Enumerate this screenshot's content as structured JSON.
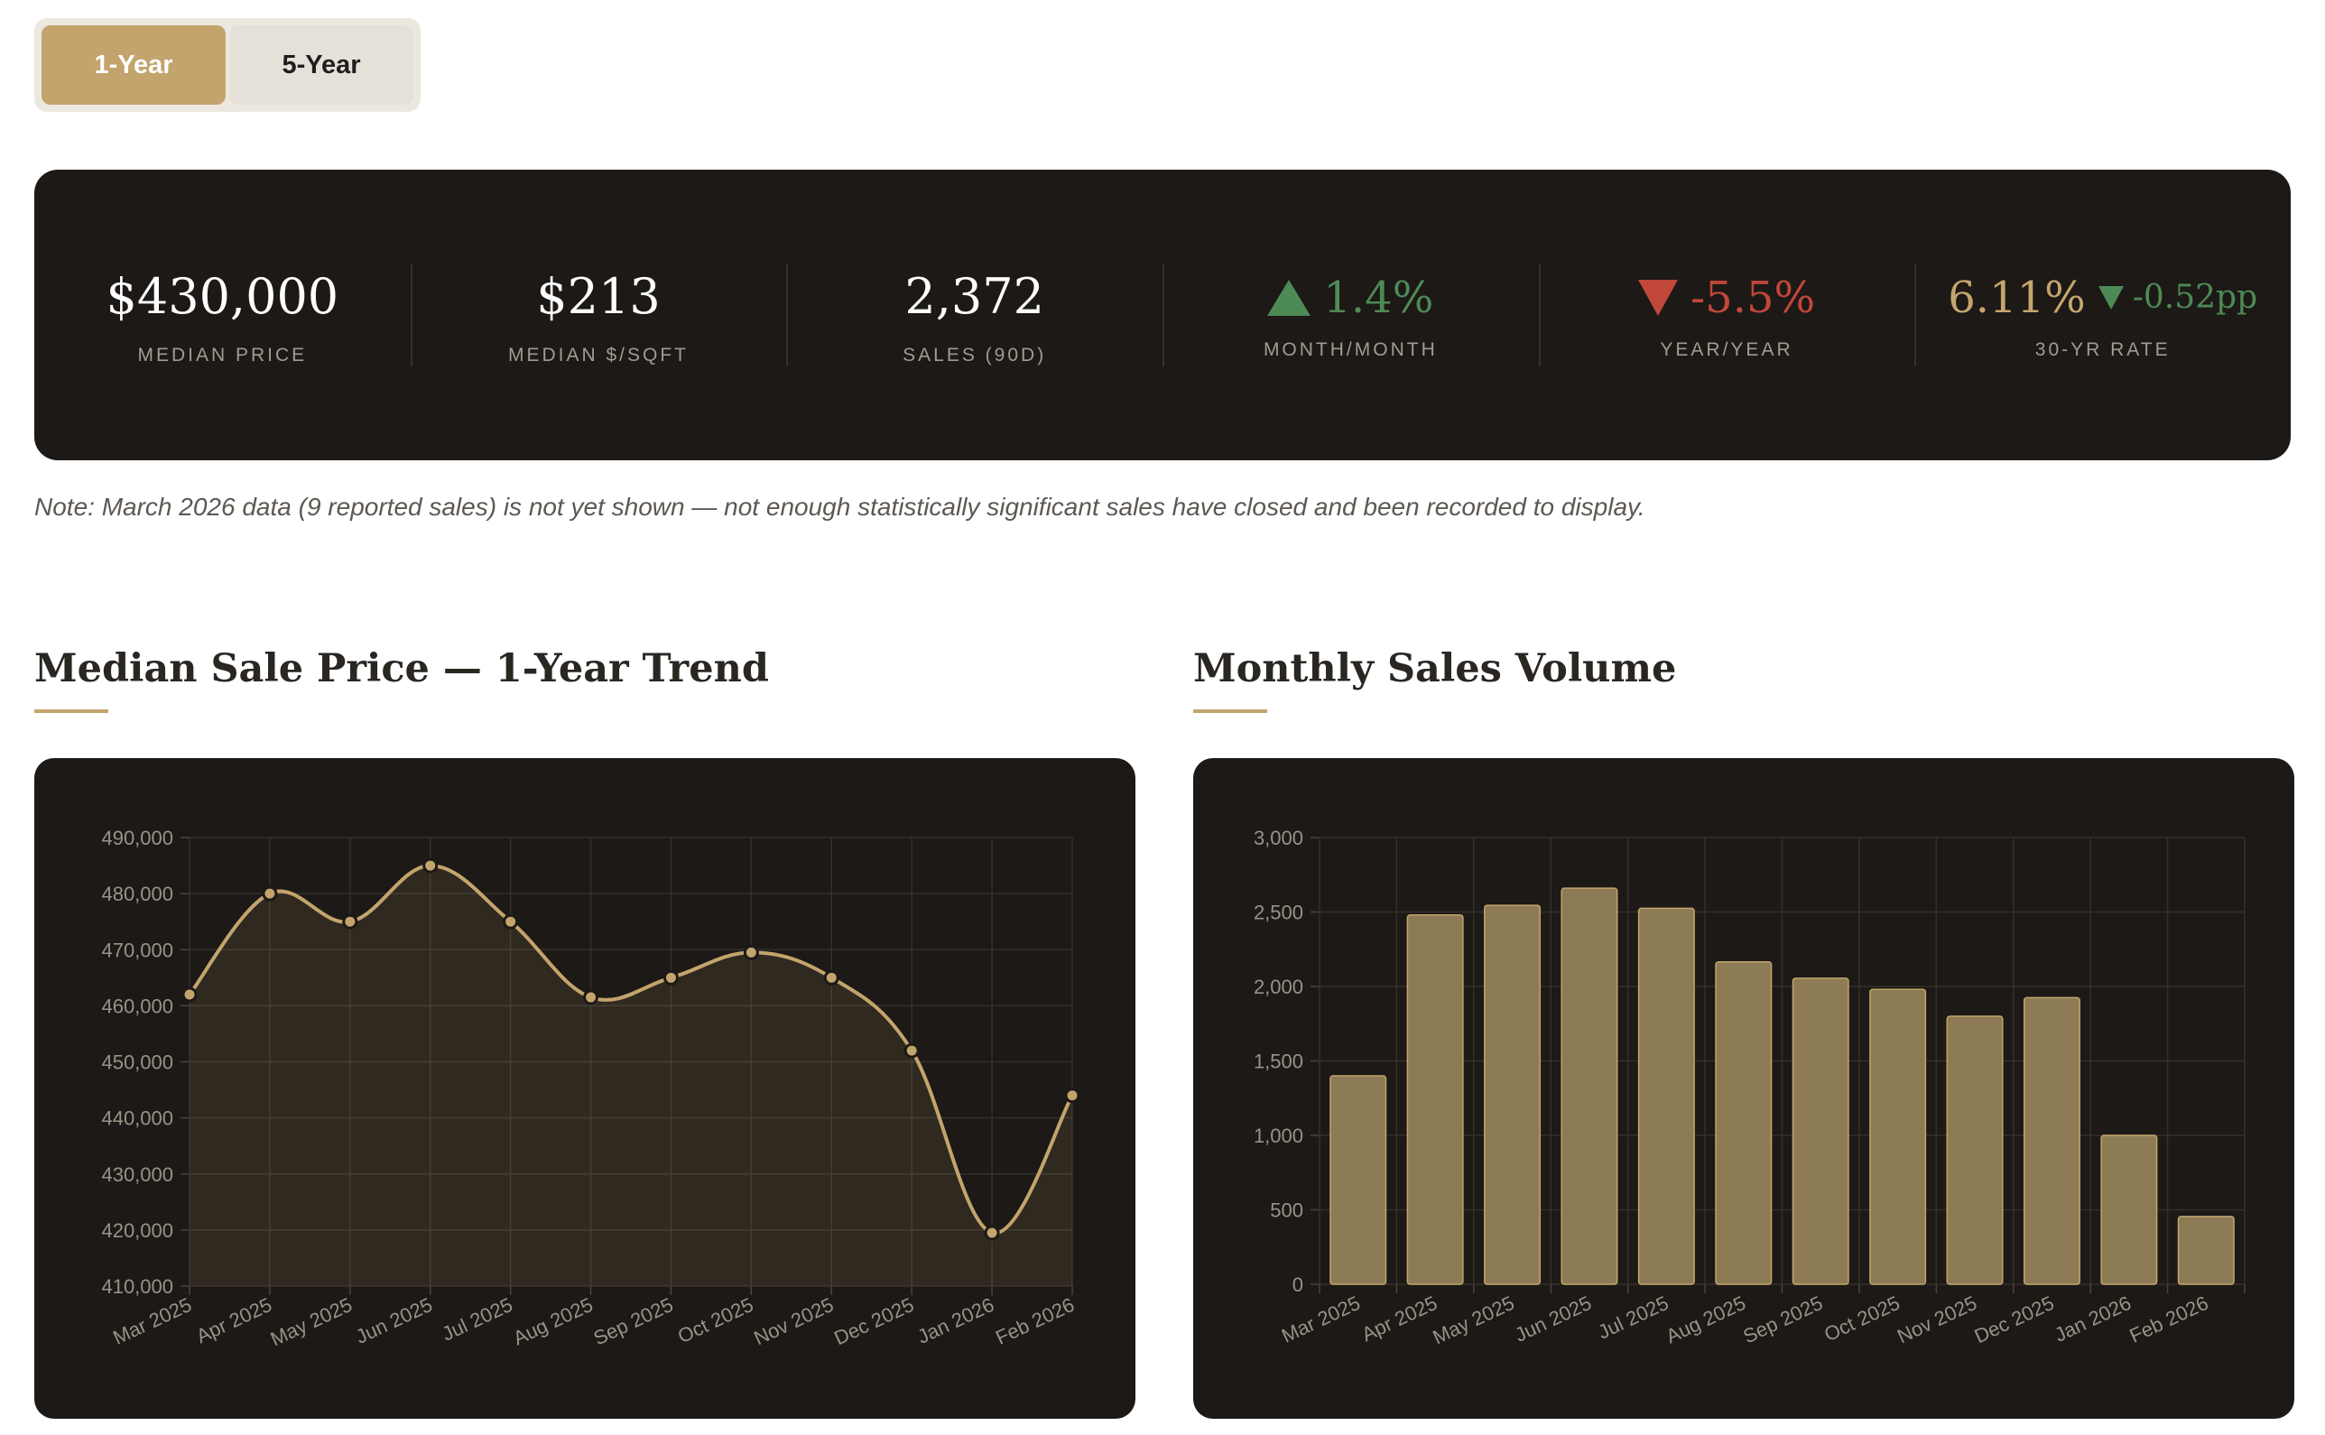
{
  "toggle": {
    "options": [
      "1-Year",
      "5-Year"
    ],
    "active": "1-Year"
  },
  "stats": {
    "median_price": {
      "value": "$430,000",
      "label": "MEDIAN PRICE"
    },
    "median_sqft": {
      "value": "$213",
      "label": "MEDIAN $/SQFT"
    },
    "sales": {
      "value": "2,372",
      "label": "SALES (90D)"
    },
    "mom": {
      "value": "1.4%",
      "label": "MONTH/MONTH",
      "direction": "up"
    },
    "yoy": {
      "value": "-5.5%",
      "label": "YEAR/YEAR",
      "direction": "down"
    },
    "rate": {
      "value": "6.11%",
      "change": "-0.52pp",
      "label": "30-YR RATE",
      "direction": "down"
    }
  },
  "note": "Note: March 2026 data (9 reported sales) is not yet shown — not enough statistically significant sales have closed and been recorded to display.",
  "colors": {
    "gold": "#c3a46c",
    "panel": "#1c1916",
    "up": "#4e8a55",
    "down": "#c0473a"
  },
  "chart_titles": {
    "price": "Median Sale Price — 1-Year Trend",
    "volume": "Monthly Sales Volume"
  },
  "chart_data": [
    {
      "type": "line",
      "title": "Median Sale Price — 1-Year Trend",
      "categories": [
        "Mar 2025",
        "Apr 2025",
        "May 2025",
        "Jun 2025",
        "Jul 2025",
        "Aug 2025",
        "Sep 2025",
        "Oct 2025",
        "Nov 2025",
        "Dec 2025",
        "Jan 2026",
        "Feb 2026"
      ],
      "values": [
        462000,
        480000,
        475000,
        485000,
        475000,
        461500,
        465000,
        469500,
        465000,
        452000,
        419500,
        444000
      ],
      "ylim": [
        410000,
        490000
      ],
      "yticks": [
        410000,
        420000,
        430000,
        440000,
        450000,
        460000,
        470000,
        480000,
        490000
      ],
      "ytick_labels": [
        "410,000",
        "420,000",
        "430,000",
        "440,000",
        "450,000",
        "460,000",
        "470,000",
        "480,000",
        "490,000"
      ],
      "grid": true
    },
    {
      "type": "bar",
      "title": "Monthly Sales Volume",
      "categories": [
        "Mar 2025",
        "Apr 2025",
        "May 2025",
        "Jun 2025",
        "Jul 2025",
        "Aug 2025",
        "Sep 2025",
        "Oct 2025",
        "Nov 2025",
        "Dec 2025",
        "Jan 2026",
        "Feb 2026"
      ],
      "values": [
        1400,
        2480,
        2545,
        2660,
        2525,
        2165,
        2055,
        1980,
        1800,
        1925,
        1000,
        455
      ],
      "ylim": [
        0,
        3000
      ],
      "yticks": [
        0,
        500,
        1000,
        1500,
        2000,
        2500,
        3000
      ],
      "ytick_labels": [
        "0",
        "500",
        "1,000",
        "1,500",
        "2,000",
        "2,500",
        "3,000"
      ],
      "grid": true
    }
  ]
}
